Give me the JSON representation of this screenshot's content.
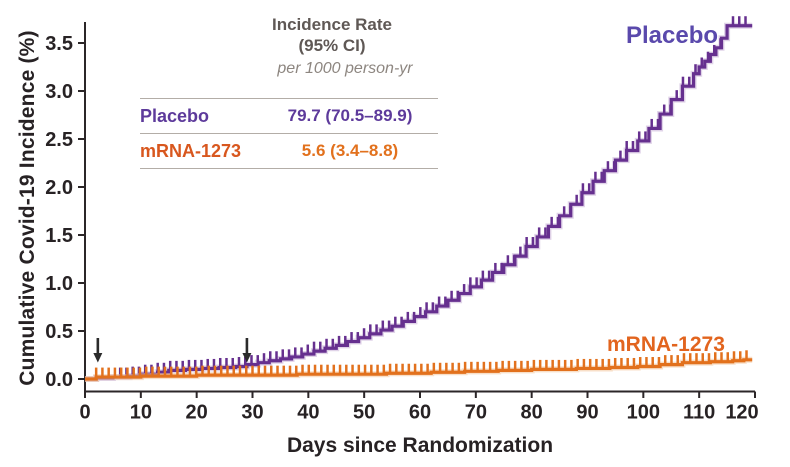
{
  "colors": {
    "axis": "#2b2628",
    "placebo_curve": "#66308f",
    "placebo_halo": "#c7aed6",
    "placebo_label": "#5a49ac",
    "mrna_curve": "#e2711d",
    "mrna_halo": "#f2c49b",
    "mrna_label": "#e2641e",
    "arrow": "#2b2b2b"
  },
  "y_axis": {
    "label": "Cumulative Covid-19 Incidence (%)"
  },
  "x_axis": {
    "label": "Days since Randomization"
  },
  "curve_labels": {
    "placebo": "Placebo",
    "mrna": "mRNA-1273"
  },
  "legend_table": {
    "header_line1": "Incidence Rate",
    "header_line2": "(95% CI)",
    "subheader": "per 1000 person-yr",
    "rows": [
      {
        "name": "Placebo",
        "value": "79.7 (70.5–89.9)"
      },
      {
        "name": "mRNA-1273",
        "value": "5.6 (3.4–8.8)"
      }
    ]
  },
  "chart_data": {
    "type": "line",
    "subtype": "kaplan-meier-cumulative-incidence-step-curves-with-censor-ticks",
    "title": "",
    "xlabel": "Days since Randomization",
    "ylabel": "Cumulative Covid-19 Incidence (%)",
    "xlim": [
      0,
      120
    ],
    "ylim": [
      0,
      3.8
    ],
    "x_ticks": [
      0,
      10,
      20,
      30,
      40,
      50,
      60,
      70,
      80,
      90,
      100,
      110,
      120
    ],
    "y_ticks": [
      0.0,
      0.5,
      1.0,
      1.5,
      2.0,
      2.5,
      3.0,
      3.5
    ],
    "grid": false,
    "legend_position": "table-top-left",
    "annotations": {
      "arrow_days": [
        2.3,
        29
      ]
    },
    "series": [
      {
        "name": "Placebo",
        "incidence_rate_per_1000_person_yr": "79.7 (70.5–89.9)",
        "points": [
          [
            0,
            0
          ],
          [
            2,
            0.01
          ],
          [
            5,
            0.02
          ],
          [
            8,
            0.03
          ],
          [
            10,
            0.05
          ],
          [
            13,
            0.07
          ],
          [
            15,
            0.09
          ],
          [
            18,
            0.1
          ],
          [
            21,
            0.11
          ],
          [
            24,
            0.12
          ],
          [
            27,
            0.13
          ],
          [
            29,
            0.15
          ],
          [
            31,
            0.17
          ],
          [
            33,
            0.19
          ],
          [
            35,
            0.21
          ],
          [
            37,
            0.23
          ],
          [
            39,
            0.26
          ],
          [
            41,
            0.29
          ],
          [
            43,
            0.32
          ],
          [
            45,
            0.35
          ],
          [
            47,
            0.39
          ],
          [
            49,
            0.43
          ],
          [
            51,
            0.47
          ],
          [
            53,
            0.51
          ],
          [
            55,
            0.55
          ],
          [
            57,
            0.6
          ],
          [
            59,
            0.65
          ],
          [
            61,
            0.7
          ],
          [
            63,
            0.76
          ],
          [
            65,
            0.82
          ],
          [
            67,
            0.89
          ],
          [
            69,
            0.96
          ],
          [
            71,
            1.03
          ],
          [
            73,
            1.11
          ],
          [
            75,
            1.19
          ],
          [
            77,
            1.28
          ],
          [
            79,
            1.38
          ],
          [
            81,
            1.48
          ],
          [
            83,
            1.59
          ],
          [
            85,
            1.7
          ],
          [
            87,
            1.82
          ],
          [
            89,
            1.94
          ],
          [
            91,
            2.06
          ],
          [
            93,
            2.17
          ],
          [
            95,
            2.28
          ],
          [
            97,
            2.38
          ],
          [
            99,
            2.48
          ],
          [
            101,
            2.61
          ],
          [
            103,
            2.76
          ],
          [
            105,
            2.91
          ],
          [
            107,
            3.05
          ],
          [
            109,
            3.18
          ],
          [
            110,
            3.25
          ],
          [
            111,
            3.31
          ],
          [
            112,
            3.38
          ],
          [
            113,
            3.45
          ],
          [
            114,
            3.55
          ],
          [
            115,
            3.68
          ],
          [
            119.5,
            3.68
          ]
        ]
      },
      {
        "name": "mRNA-1273",
        "incidence_rate_per_1000_person_yr": "5.6 (3.4–8.8)",
        "points": [
          [
            0,
            0
          ],
          [
            2,
            0.02
          ],
          [
            10,
            0.03
          ],
          [
            20,
            0.04
          ],
          [
            30,
            0.04
          ],
          [
            38,
            0.05
          ],
          [
            46,
            0.05
          ],
          [
            54,
            0.06
          ],
          [
            62,
            0.07
          ],
          [
            68,
            0.08
          ],
          [
            74,
            0.09
          ],
          [
            80,
            0.1
          ],
          [
            88,
            0.11
          ],
          [
            94,
            0.12
          ],
          [
            99,
            0.13
          ],
          [
            103,
            0.15
          ],
          [
            107,
            0.17
          ],
          [
            112,
            0.18
          ],
          [
            116,
            0.19
          ],
          [
            118,
            0.2
          ],
          [
            119.5,
            0.2
          ]
        ]
      }
    ]
  }
}
